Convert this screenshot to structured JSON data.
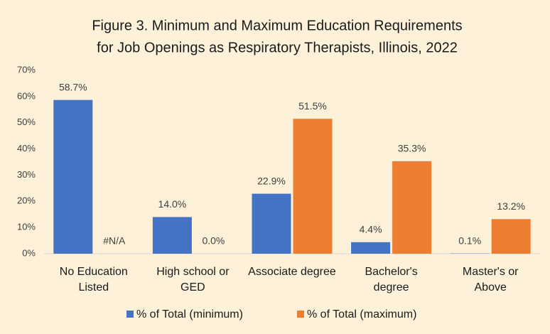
{
  "chart_data": {
    "type": "bar",
    "title": "Figure 3. Minimum and Maximum Education Requirements",
    "subtitle": "for Job Openings as Respiratory Therapists, Illinois, 2022",
    "categories": [
      "No Education Listed",
      "High school or GED",
      "Associate degree",
      "Bachelor's degree",
      "Master's or Above"
    ],
    "series": [
      {
        "name": "% of Total (minimum)",
        "color": "#4472c4",
        "values": [
          58.7,
          14.0,
          22.9,
          4.4,
          0.1
        ],
        "value_labels": [
          "58.7%",
          "14.0%",
          "22.9%",
          "4.4%",
          "0.1%"
        ]
      },
      {
        "name": "% of Total (maximum)",
        "color": "#ed7d31",
        "values": [
          null,
          0.0,
          51.5,
          35.3,
          13.2
        ],
        "value_labels": [
          "#N/A",
          "0.0%",
          "51.5%",
          "35.3%",
          "13.2%"
        ]
      }
    ],
    "ylim": [
      0,
      70
    ],
    "yticks": [
      {
        "value": 0,
        "label": "0%"
      },
      {
        "value": 10,
        "label": "10%"
      },
      {
        "value": 20,
        "label": "20%"
      },
      {
        "value": 30,
        "label": "30%"
      },
      {
        "value": 40,
        "label": "40%"
      },
      {
        "value": 50,
        "label": "50%"
      },
      {
        "value": 60,
        "label": "60%"
      },
      {
        "value": 70,
        "label": "70%"
      }
    ],
    "grid": false,
    "legend": "bottom"
  }
}
